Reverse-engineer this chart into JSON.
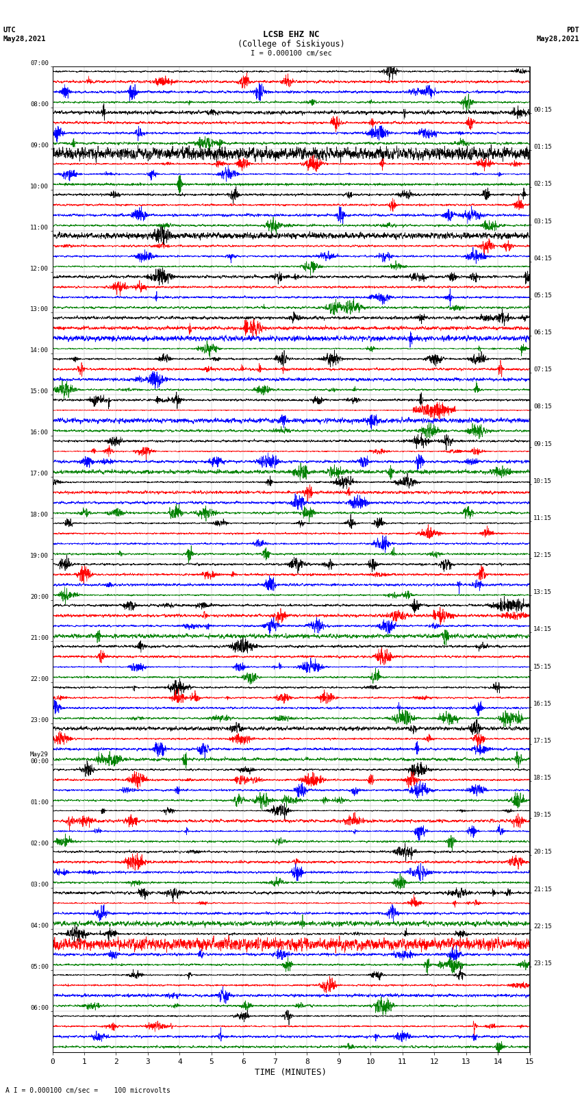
{
  "title_line1": "LCSB EHZ NC",
  "title_line2": "(College of Siskiyous)",
  "scale_label": "I = 0.000100 cm/sec",
  "left_header_line1": "UTC",
  "left_header_line2": "May28,2021",
  "right_header_line1": "PDT",
  "right_header_line2": "May28,2021",
  "xlabel": "TIME (MINUTES)",
  "footer": "A I = 0.000100 cm/sec =    100 microvolts",
  "utc_times": [
    "07:00",
    "08:00",
    "09:00",
    "10:00",
    "11:00",
    "12:00",
    "13:00",
    "14:00",
    "15:00",
    "16:00",
    "17:00",
    "18:00",
    "19:00",
    "20:00",
    "21:00",
    "22:00",
    "23:00",
    "May29\n00:00",
    "01:00",
    "02:00",
    "03:00",
    "04:00",
    "05:00",
    "06:00"
  ],
  "pdt_times": [
    "00:15",
    "01:15",
    "02:15",
    "03:15",
    "04:15",
    "05:15",
    "06:15",
    "07:15",
    "08:15",
    "09:15",
    "10:15",
    "11:15",
    "12:15",
    "13:15",
    "14:15",
    "15:15",
    "16:15",
    "17:15",
    "18:15",
    "19:15",
    "20:15",
    "21:15",
    "22:15",
    "23:15"
  ],
  "colors": [
    "black",
    "red",
    "blue",
    "green"
  ],
  "bg_color": "white",
  "num_rows": 24,
  "traces_per_row": 4,
  "xmin": 0,
  "xmax": 15,
  "xticks": [
    0,
    1,
    2,
    3,
    4,
    5,
    6,
    7,
    8,
    9,
    10,
    11,
    12,
    13,
    14,
    15
  ],
  "figsize": [
    8.5,
    16.13
  ],
  "dpi": 100,
  "linewidth": 0.5
}
